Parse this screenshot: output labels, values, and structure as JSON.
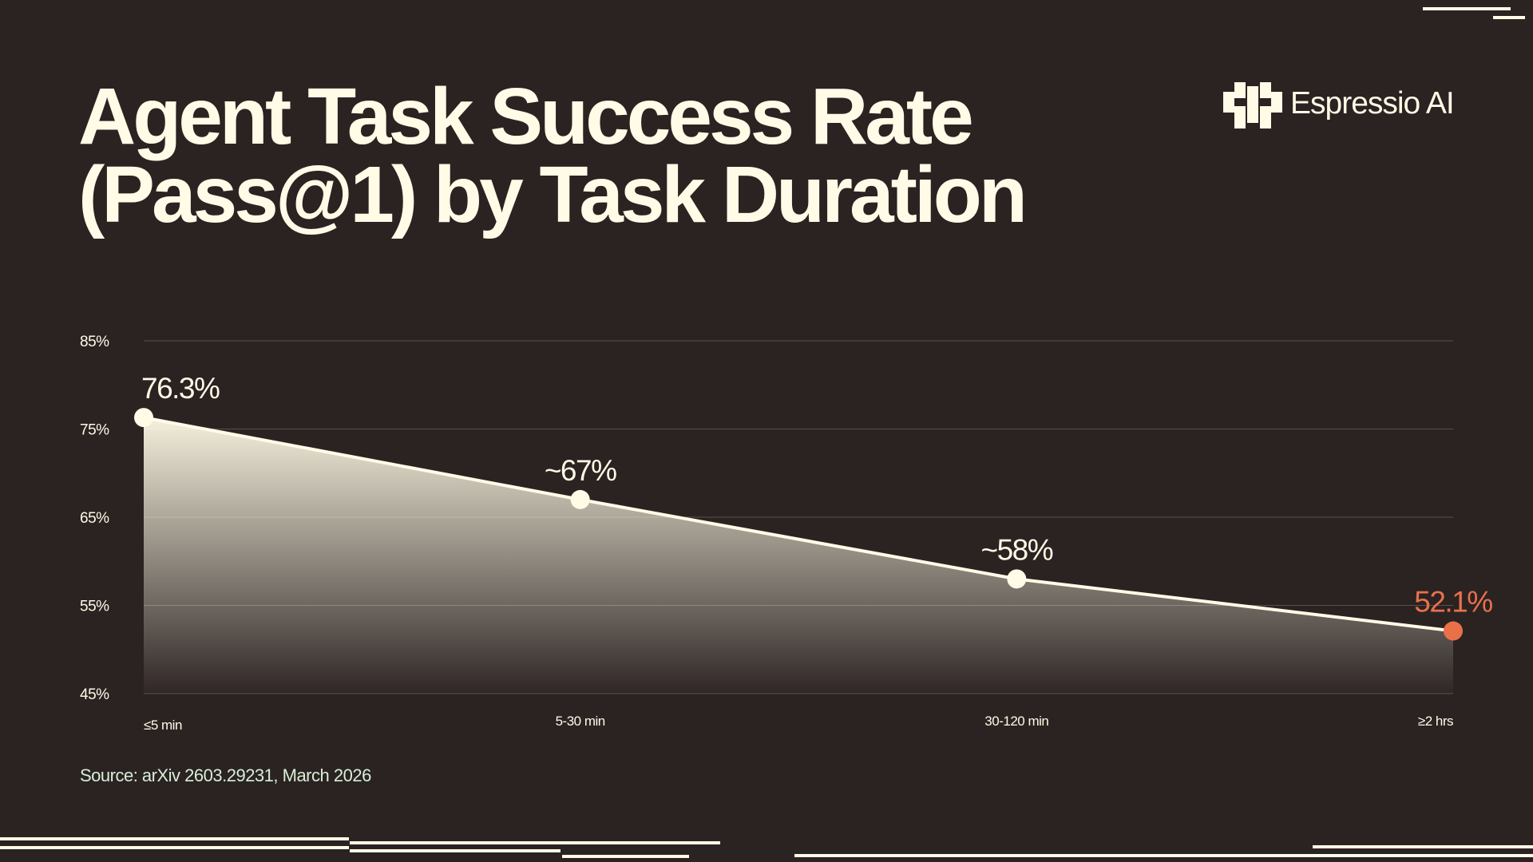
{
  "chart_data": {
    "type": "area",
    "title_lines": [
      "Agent Task Success Rate",
      "(Pass@1) by Task Duration"
    ],
    "brand": "Espressio AI",
    "source": "Source: arXiv 2603.29231, March 2026",
    "categories": [
      "≤5 min",
      "5-30 min",
      "30-120 min",
      "≥2 hrs"
    ],
    "values": [
      76.3,
      67,
      58,
      52.1
    ],
    "value_labels": [
      "76.3%",
      "~67%",
      "~58%",
      "52.1%"
    ],
    "point_colors": [
      "#fffbe6",
      "#fffbe6",
      "#fffbe6",
      "#e8714a"
    ],
    "color": "#fffbe6",
    "ylim": [
      45,
      85
    ],
    "yticks": [
      {
        "value": 45,
        "label": "45%"
      },
      {
        "value": 55,
        "label": "55%"
      },
      {
        "value": 65,
        "label": "65%"
      },
      {
        "value": 75,
        "label": "75%"
      },
      {
        "value": 85,
        "label": "85%"
      }
    ],
    "grid": true
  }
}
